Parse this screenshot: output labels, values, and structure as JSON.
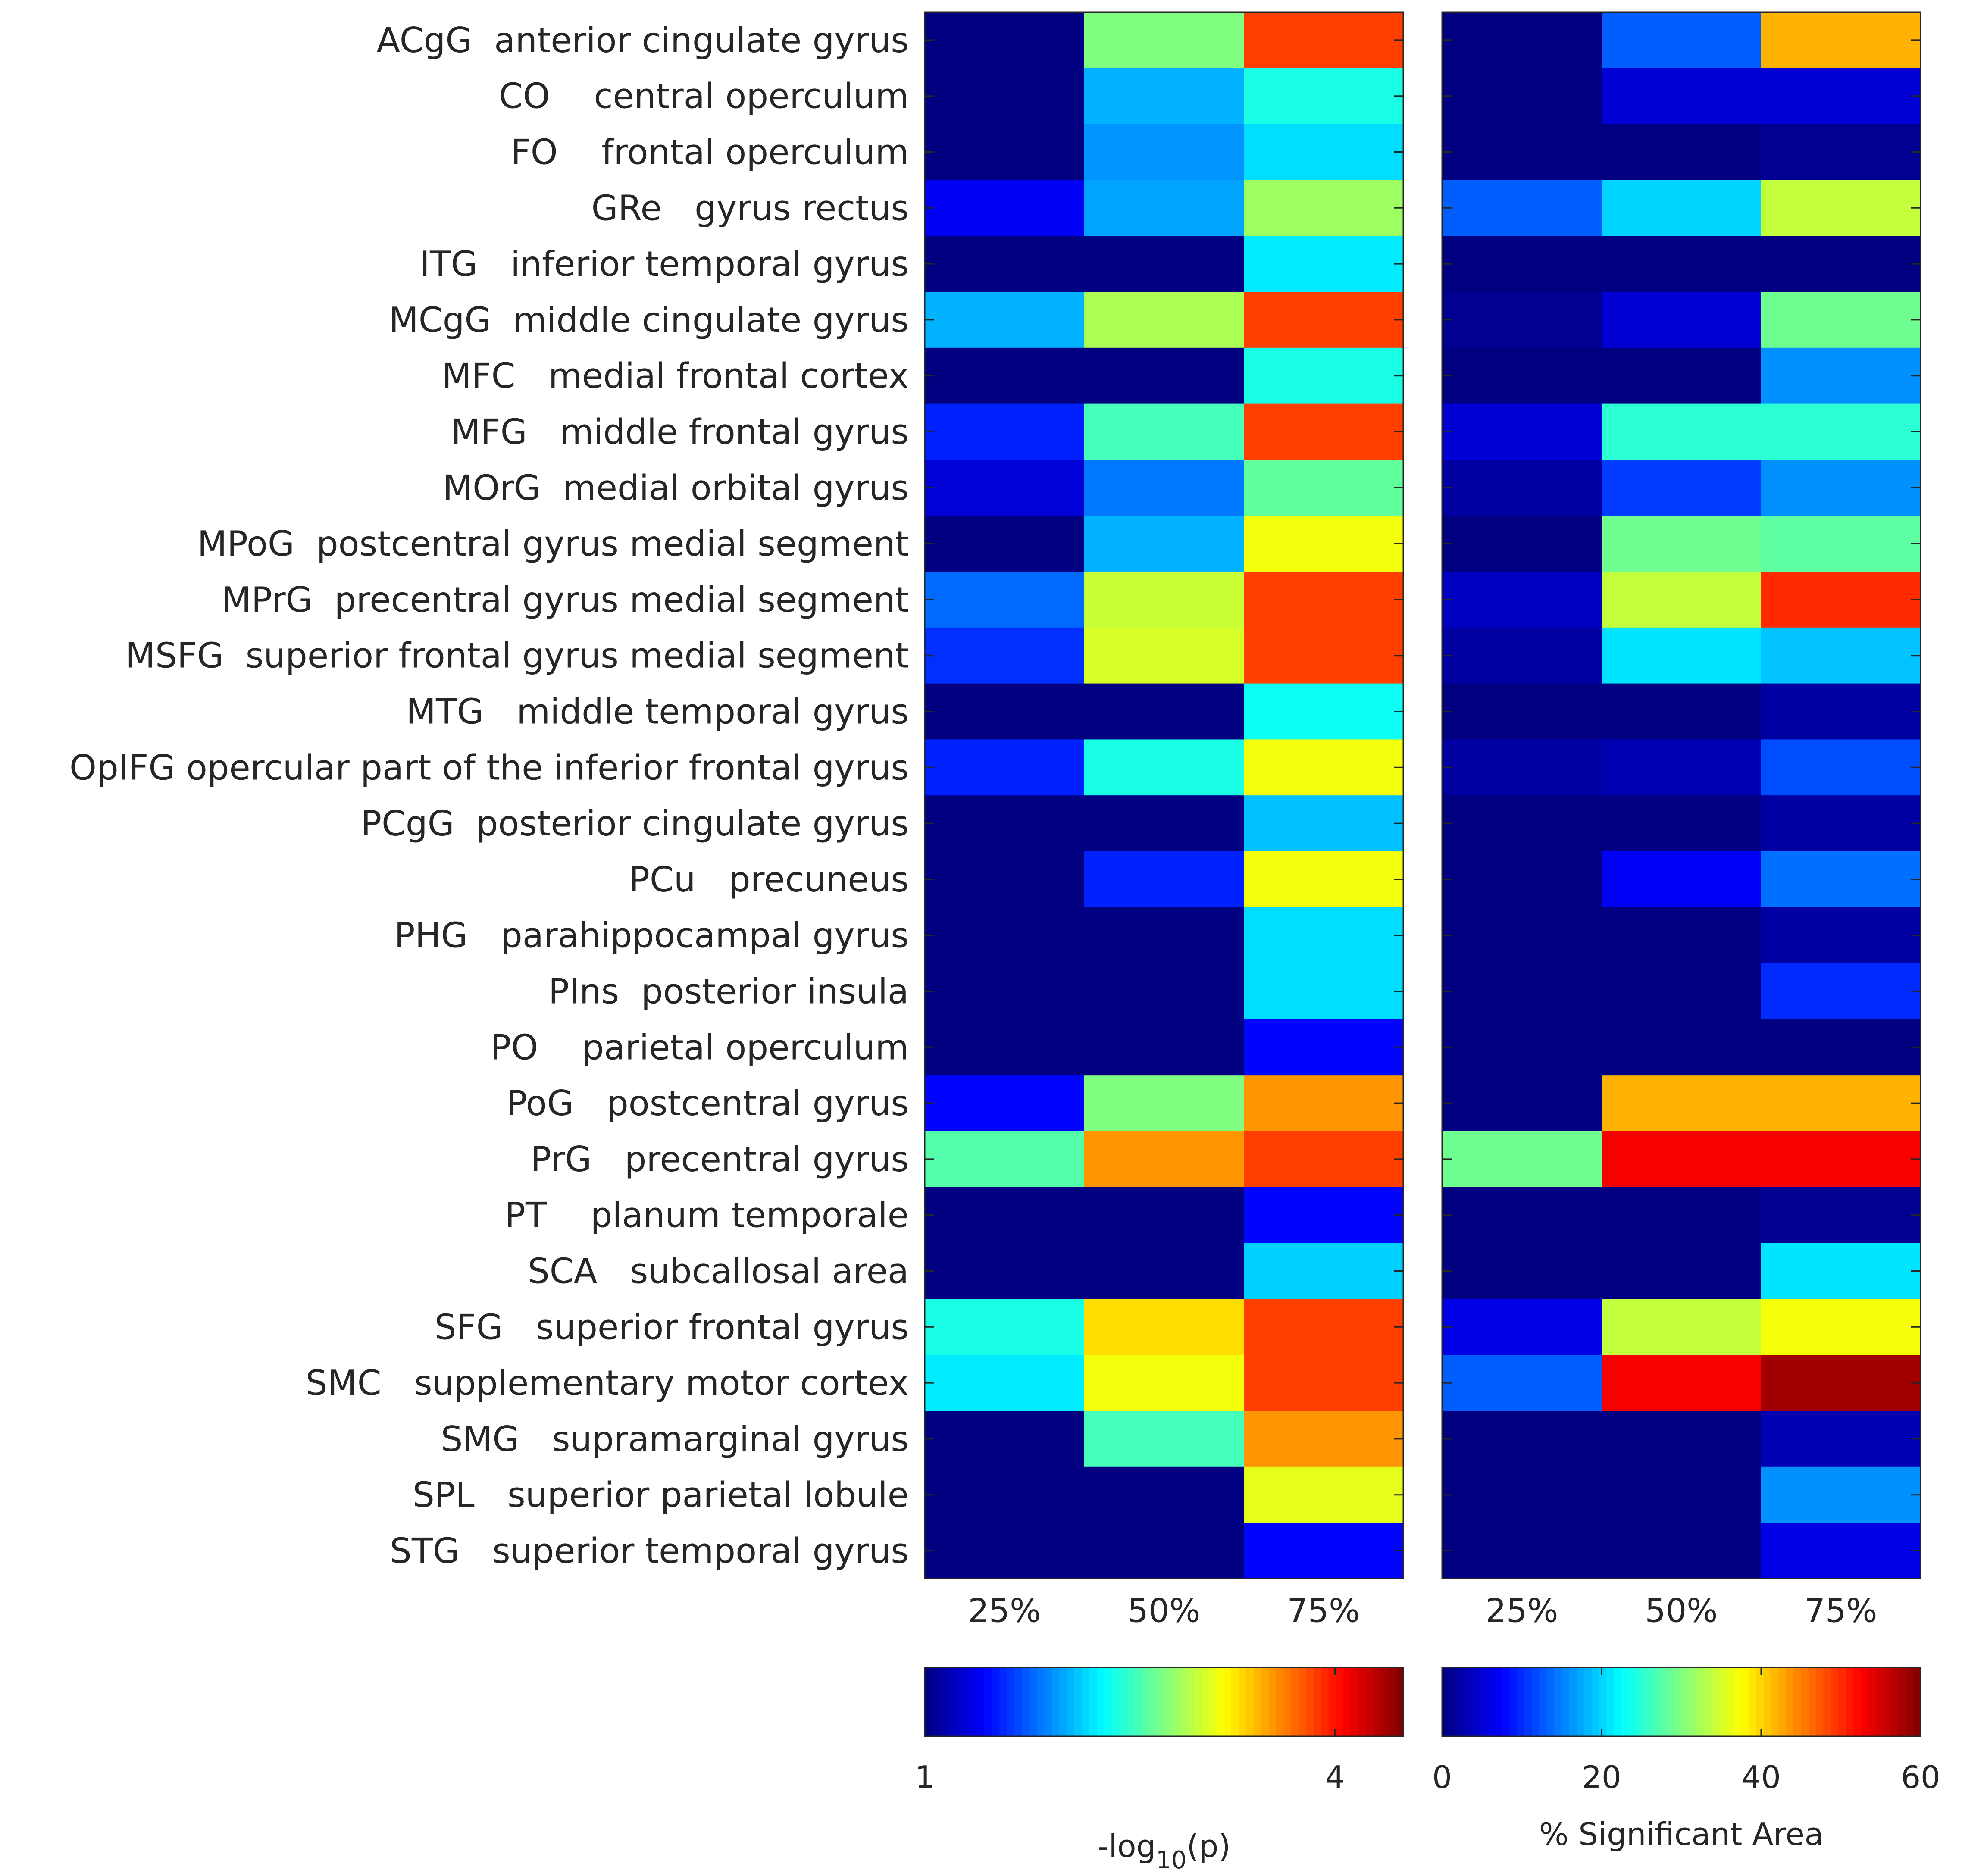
{
  "chart_data": [
    {
      "type": "heatmap",
      "id": "left",
      "title": "",
      "categories": [
        "25%",
        "50%",
        "75%"
      ],
      "rows": [
        "ACgG  anterior cingulate gyrus",
        "CO    central operculum",
        "FO    frontal operculum",
        "GRe   gyrus rectus",
        "ITG   inferior temporal gyrus",
        "MCgG  middle cingulate gyrus",
        "MFC   medial frontal cortex",
        "MFG   middle frontal gyrus",
        "MOrG  medial orbital gyrus",
        "MPoG  postcentral gyrus medial segment",
        "MPrG  precentral gyrus medial segment",
        "MSFG  superior frontal gyrus medial segment",
        "MTG   middle temporal gyrus",
        "OpIFG opercular part of the inferior frontal gyrus",
        "PCgG  posterior cingulate gyrus",
        "PCu   precuneus",
        "PHG   parahippocampal gyrus",
        "PIns  posterior insula",
        "PO    parietal operculum",
        "PoG   postcentral gyrus",
        "PrG   precentral gyrus",
        "PT    planum temporale",
        "SCA   subcallosal area",
        "SFG   superior frontal gyrus",
        "SMC   supplementary motor cortex",
        "SMG   supramarginal gyrus",
        "SPL   superior parietal lobule",
        "STG   superior temporal gyrus"
      ],
      "values": [
        [
          1.0,
          2.75,
          3.85
        ],
        [
          1.0,
          2.05,
          2.4
        ],
        [
          1.0,
          1.95,
          2.2
        ],
        [
          1.4,
          2.0,
          2.85
        ],
        [
          1.0,
          1.0,
          2.25
        ],
        [
          2.05,
          2.9,
          3.85
        ],
        [
          1.0,
          1.0,
          2.4
        ],
        [
          1.55,
          2.55,
          3.85
        ],
        [
          1.3,
          1.85,
          2.65
        ],
        [
          1.0,
          2.05,
          3.15
        ],
        [
          1.8,
          3.0,
          3.85
        ],
        [
          1.6,
          3.05,
          3.85
        ],
        [
          1.0,
          1.0,
          2.35
        ],
        [
          1.55,
          2.4,
          3.15
        ],
        [
          1.0,
          1.0,
          2.1
        ],
        [
          1.0,
          1.55,
          3.15
        ],
        [
          1.0,
          1.0,
          2.2
        ],
        [
          1.0,
          1.0,
          2.2
        ],
        [
          1.0,
          1.0,
          1.45
        ],
        [
          1.45,
          2.75,
          3.55
        ],
        [
          2.6,
          3.55,
          3.85
        ],
        [
          1.0,
          1.0,
          1.45
        ],
        [
          1.0,
          1.0,
          2.15
        ],
        [
          2.4,
          3.3,
          3.85
        ],
        [
          2.25,
          3.15,
          3.85
        ],
        [
          1.0,
          2.55,
          3.55
        ],
        [
          1.0,
          1.0,
          3.1
        ],
        [
          1.0,
          1.0,
          1.45
        ]
      ],
      "colorbar": {
        "min": 1,
        "max": 4.5,
        "ticks": [
          1,
          4
        ],
        "tick_labels": [
          "1",
          "4"
        ],
        "colormap": "jet"
      },
      "colorbar_label_main": "-log",
      "colorbar_label_sub": "10",
      "colorbar_label_tail": "(p)"
    },
    {
      "type": "heatmap",
      "id": "right",
      "title": "",
      "categories": [
        "25%",
        "50%",
        "75%"
      ],
      "values": [
        [
          0,
          13,
          42
        ],
        [
          0,
          5,
          5
        ],
        [
          0,
          0,
          1
        ],
        [
          13,
          20,
          34
        ],
        [
          0,
          0,
          0
        ],
        [
          1,
          5,
          29
        ],
        [
          0,
          0,
          16
        ],
        [
          5,
          25,
          25
        ],
        [
          2,
          11,
          16
        ],
        [
          0,
          29,
          28
        ],
        [
          4,
          34,
          50
        ],
        [
          2,
          21,
          19
        ],
        [
          0,
          0,
          2
        ],
        [
          2,
          3,
          12
        ],
        [
          0,
          0,
          2
        ],
        [
          0,
          7,
          14
        ],
        [
          0,
          0,
          2
        ],
        [
          0,
          0,
          10
        ],
        [
          0,
          0,
          0
        ],
        [
          0,
          42,
          42
        ],
        [
          29,
          53,
          53
        ],
        [
          0,
          0,
          1
        ],
        [
          0,
          0,
          21
        ],
        [
          6,
          34,
          37
        ],
        [
          13,
          53,
          58
        ],
        [
          0,
          0,
          3
        ],
        [
          0,
          0,
          16
        ],
        [
          0,
          0,
          6
        ]
      ],
      "colorbar": {
        "min": 0,
        "max": 60,
        "ticks": [
          0,
          20,
          40,
          60
        ],
        "tick_labels": [
          "0",
          "20",
          "40",
          "60"
        ],
        "colormap": "jet"
      },
      "colorbar_label": "% Significant Area"
    }
  ]
}
